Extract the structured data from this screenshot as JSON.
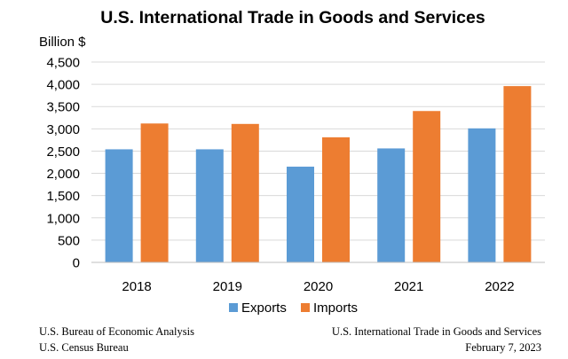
{
  "chart_data": {
    "type": "bar",
    "title": "U.S. International Trade in Goods and Services",
    "ylabel": "Billion $",
    "xlabel": "",
    "categories": [
      "2018",
      "2019",
      "2020",
      "2021",
      "2022"
    ],
    "series": [
      {
        "name": "Exports",
        "color": "#5b9bd5",
        "values": [
          2540,
          2540,
          2150,
          2560,
          3010
        ]
      },
      {
        "name": "Imports",
        "color": "#ed7d31",
        "values": [
          3120,
          3110,
          2810,
          3400,
          3960
        ]
      }
    ],
    "ylim": [
      0,
      4500
    ],
    "yticks": [
      "0",
      "500",
      "1,000",
      "1,500",
      "2,000",
      "2,500",
      "3,000",
      "3,500",
      "4,000",
      "4,500"
    ],
    "grid": true,
    "legend": "bottom-center"
  },
  "footer": {
    "source_line1": "U.S. Bureau of Economic Analysis",
    "source_line2": "U.S. Census Bureau",
    "report_line1": "U.S. International Trade in Goods and Services",
    "report_line2": "February 7, 2023"
  }
}
